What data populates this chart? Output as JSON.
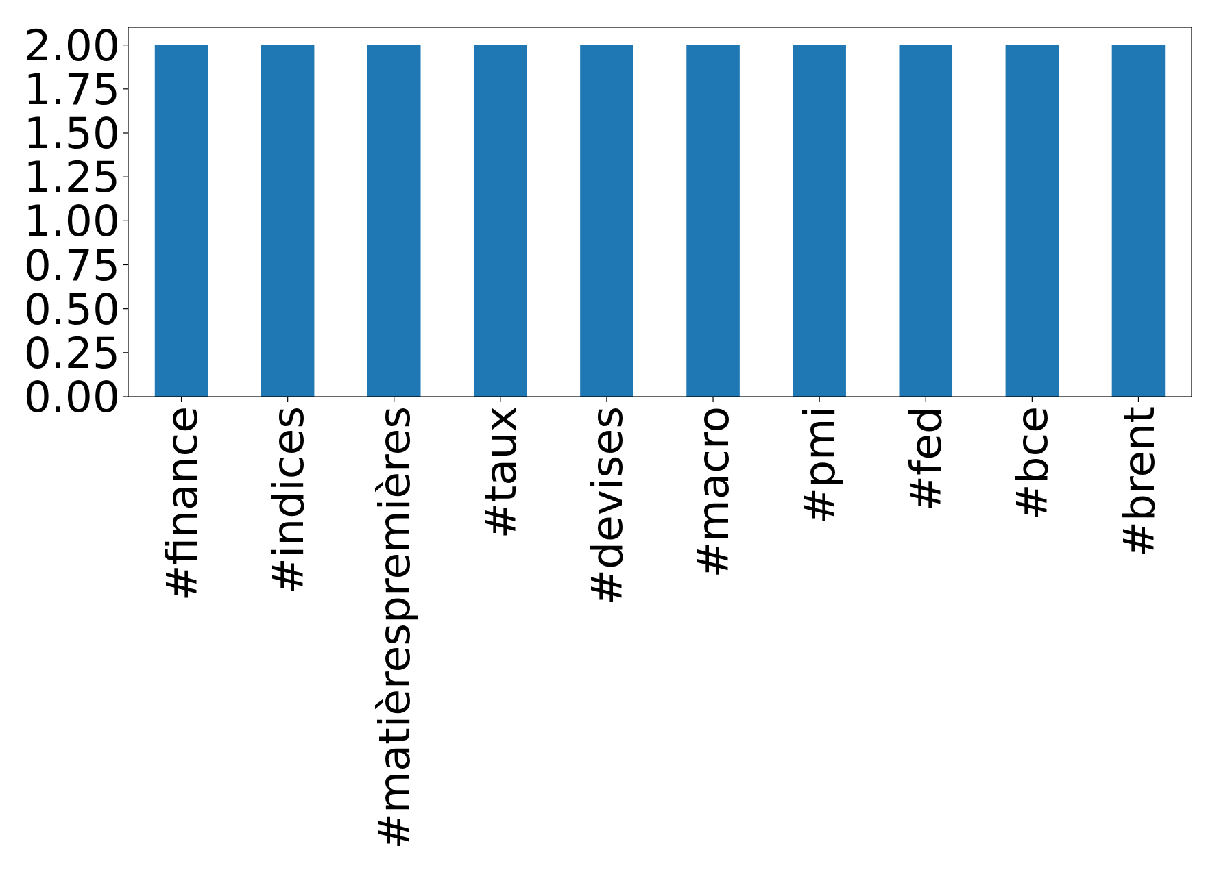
{
  "chart_data": {
    "type": "bar",
    "categories": [
      "#finance",
      "#indices",
      "#matièrespremières",
      "#taux",
      "#devises",
      "#macro",
      "#pmi",
      "#fed",
      "#bce",
      "#brent"
    ],
    "values": [
      2,
      2,
      2,
      2,
      2,
      2,
      2,
      2,
      2,
      2
    ],
    "color": "#1f77b4",
    "ylim": [
      0,
      2.1
    ],
    "yticks": [
      {
        "value": 0,
        "label": "0.00"
      },
      {
        "value": 0.25,
        "label": "0.25"
      },
      {
        "value": 0.5,
        "label": "0.50"
      },
      {
        "value": 0.75,
        "label": "0.75"
      },
      {
        "value": 1,
        "label": "1.00"
      },
      {
        "value": 1.25,
        "label": "1.25"
      },
      {
        "value": 1.5,
        "label": "1.50"
      },
      {
        "value": 1.75,
        "label": "1.75"
      },
      {
        "value": 2,
        "label": "2.00"
      }
    ],
    "grid": false
  }
}
